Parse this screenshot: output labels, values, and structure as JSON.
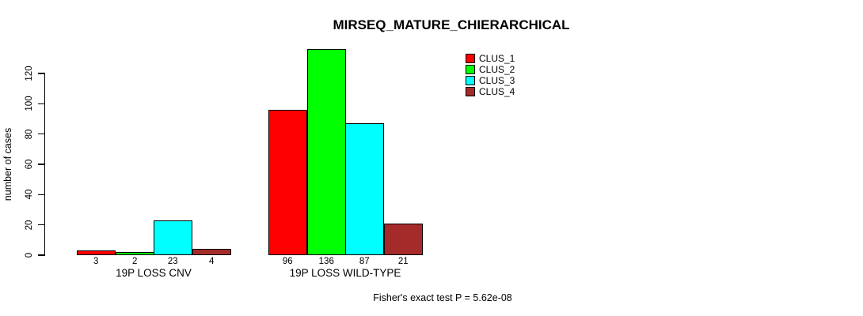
{
  "chart_data": {
    "type": "bar",
    "title": "MIRSEQ_MATURE_CHIERARCHICAL",
    "xlabel": "",
    "ylabel": "number of cases",
    "y_ticks": [
      0,
      20,
      40,
      60,
      80,
      100,
      120
    ],
    "ylim": [
      0,
      138
    ],
    "grid": false,
    "legend_position": "top-right-inside",
    "categories": [
      "19P LOSS CNV",
      "19P LOSS WILD-TYPE"
    ],
    "series": [
      {
        "name": "CLUS_1",
        "color": "#FF0000",
        "values": [
          3,
          96
        ]
      },
      {
        "name": "CLUS_2",
        "color": "#00FF00",
        "values": [
          2,
          136
        ]
      },
      {
        "name": "CLUS_3",
        "color": "#00FFFF",
        "values": [
          23,
          87
        ]
      },
      {
        "name": "CLUS_4",
        "color": "#A52A2A",
        "values": [
          4,
          21
        ]
      }
    ],
    "bar_value_labels": [
      [
        "3",
        "2",
        "23",
        "4"
      ],
      [
        "96",
        "136",
        "87",
        "21"
      ]
    ],
    "annotation": "Fisher's exact test P = 5.62e-08"
  }
}
